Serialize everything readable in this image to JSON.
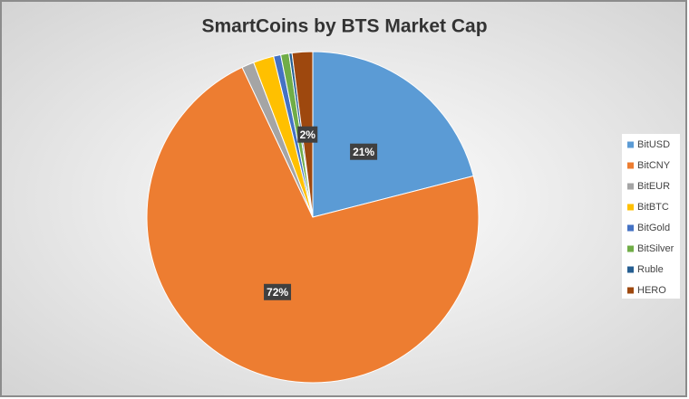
{
  "chart_data": {
    "type": "pie",
    "title": "SmartCoins by BTS Market Cap",
    "categories": [
      "BitUSD",
      "BitCNY",
      "BitEUR",
      "BitBTC",
      "BitGold",
      "BitSilver",
      "Ruble",
      "HERO"
    ],
    "values": [
      21,
      72,
      1.2,
      2,
      0.7,
      0.8,
      0.3,
      2
    ],
    "value_labels": [
      "21%",
      "72%",
      null,
      null,
      null,
      null,
      null,
      "2%"
    ],
    "colors": [
      "#5b9bd5",
      "#ed7d31",
      "#a5a5a5",
      "#ffc000",
      "#4472c4",
      "#70ad47",
      "#255e91",
      "#9e480e"
    ],
    "legend": "right"
  }
}
